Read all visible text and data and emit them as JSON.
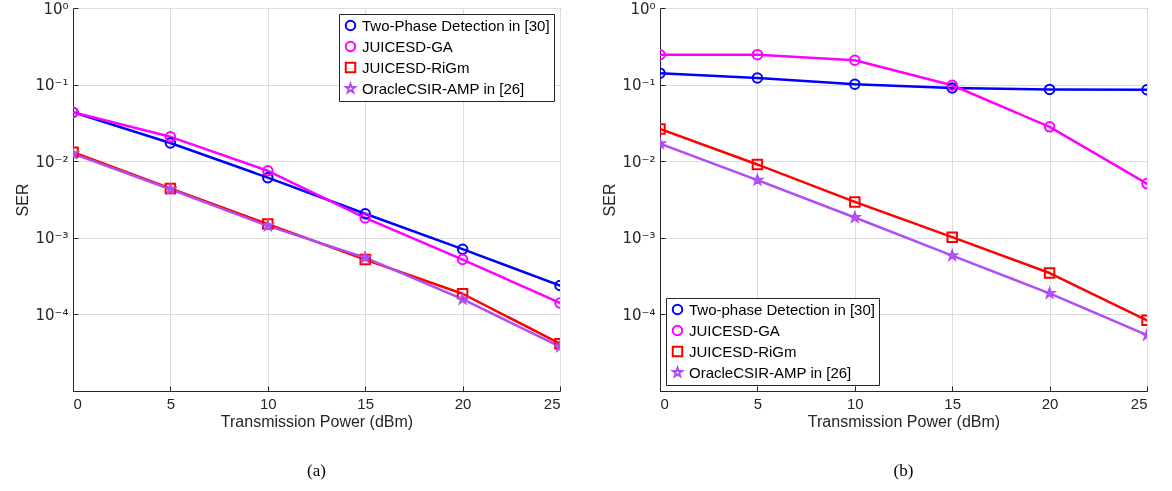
{
  "chart_data": [
    {
      "type": "line",
      "title": "(a)",
      "xlabel": "Transmission Power (dBm)",
      "ylabel": "SER",
      "log": true,
      "grid": true,
      "legend": "top right",
      "x": [
        0,
        5,
        10,
        15,
        20,
        25
      ],
      "xlim": [
        0,
        25
      ],
      "xticks": [
        0,
        5,
        10,
        15,
        20,
        25
      ],
      "ylim": [
        1e-05,
        1
      ],
      "yticks": [
        {
          "value": 1e-05,
          "label": null
        },
        {
          "value": 0.0001,
          "label": "10⁻⁴"
        },
        {
          "value": 0.001,
          "label": "10⁻³"
        },
        {
          "value": 0.01,
          "label": "10⁻²"
        },
        {
          "value": 0.1,
          "label": "10⁻¹"
        },
        {
          "value": 1,
          "label": "10⁰"
        }
      ],
      "series": [
        {
          "name": "Two-Phase Detection in [30]",
          "color": "#0000ff",
          "marker": "circle",
          "values": [
            0.0435,
            0.0173,
            0.0061,
            0.00206,
            0.00071,
            0.000238
          ]
        },
        {
          "name": "JUICESD-GA",
          "color": "#ff00ff",
          "marker": "circle",
          "values": [
            0.0435,
            0.0208,
            0.0075,
            0.00182,
            0.00052,
            0.000141
          ]
        },
        {
          "name": "JUICESD-RiGm",
          "color": "#ff0000",
          "marker": "square",
          "values": [
            0.0131,
            0.0044,
            0.00151,
            0.00052,
            0.000186,
            4.15e-05
          ]
        },
        {
          "name": "OracleCSIR-AMP in [26]",
          "color": "#b04df5",
          "marker": "star",
          "values": [
            0.0125,
            0.0043,
            0.00143,
            0.00055,
            0.000158,
            3.8e-05
          ]
        }
      ]
    },
    {
      "type": "line",
      "title": "(b)",
      "xlabel": "Transmission Power (dBm)",
      "ylabel": "SER",
      "log": true,
      "grid": true,
      "legend": "bottom left",
      "x": [
        0,
        5,
        10,
        15,
        20,
        25
      ],
      "xlim": [
        0,
        25
      ],
      "xticks": [
        0,
        5,
        10,
        15,
        20,
        25
      ],
      "ylim": [
        1e-05,
        1
      ],
      "yticks": [
        {
          "value": 1e-05,
          "label": null
        },
        {
          "value": 0.0001,
          "label": "10⁻⁴"
        },
        {
          "value": 0.001,
          "label": "10⁻³"
        },
        {
          "value": 0.01,
          "label": "10⁻²"
        },
        {
          "value": 0.1,
          "label": "10⁻¹"
        },
        {
          "value": 1,
          "label": "10⁰"
        }
      ],
      "series": [
        {
          "name": "Two-phase Detection in [30]",
          "color": "#0000ff",
          "marker": "circle",
          "values": [
            0.141,
            0.122,
            0.101,
            0.0905,
            0.0865,
            0.0855
          ]
        },
        {
          "name": "JUICESD-GA",
          "color": "#ff00ff",
          "marker": "circle",
          "values": [
            0.246,
            0.246,
            0.208,
            0.098,
            0.0281,
            0.0051
          ]
        },
        {
          "name": "JUICESD-RiGm",
          "color": "#ff0000",
          "marker": "square",
          "values": [
            0.0263,
            0.00906,
            0.00294,
            0.00102,
            0.000347,
            8.37e-05
          ]
        },
        {
          "name": "OracleCSIR-AMP in [26]",
          "color": "#b04df5",
          "marker": "star",
          "values": [
            0.0169,
            0.00567,
            0.00184,
            0.000586,
            0.000188,
            5.36e-05
          ]
        }
      ]
    }
  ]
}
